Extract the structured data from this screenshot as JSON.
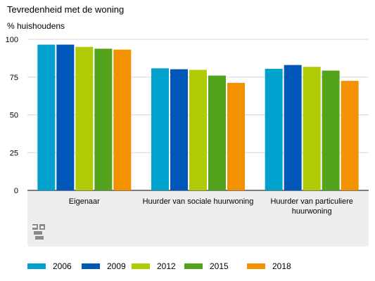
{
  "header": {
    "title": "Tevredenheid met de woning",
    "unit": "% huishoudens"
  },
  "chart_data": {
    "type": "bar",
    "title": "Tevredenheid met de woning",
    "ylabel": "% huishoudens",
    "xlabel": "",
    "ylim": [
      0,
      100
    ],
    "yticks": [
      0,
      25,
      50,
      75,
      100
    ],
    "grid": true,
    "legend_position": "bottom",
    "categories": [
      [
        "Eigenaar"
      ],
      [
        "Huurder van sociale huurwoning"
      ],
      [
        "Huurder van particuliere",
        "huurwoning"
      ]
    ],
    "series": [
      {
        "name": "2006",
        "color": "#00a1cd",
        "values": [
          96.5,
          80.8,
          80.5
        ]
      },
      {
        "name": "2009",
        "color": "#0058b8",
        "values": [
          96.5,
          80.2,
          83.0
        ]
      },
      {
        "name": "2012",
        "color": "#afcb05",
        "values": [
          95.0,
          79.8,
          81.8
        ]
      },
      {
        "name": "2015",
        "color": "#53a31d",
        "values": [
          93.8,
          76.0,
          79.3
        ]
      },
      {
        "name": "2018",
        "color": "#f39200",
        "values": [
          93.2,
          71.2,
          72.5
        ]
      }
    ]
  },
  "logo": {
    "icon": "cbs-logo-icon",
    "color": "#8a8a8a"
  }
}
